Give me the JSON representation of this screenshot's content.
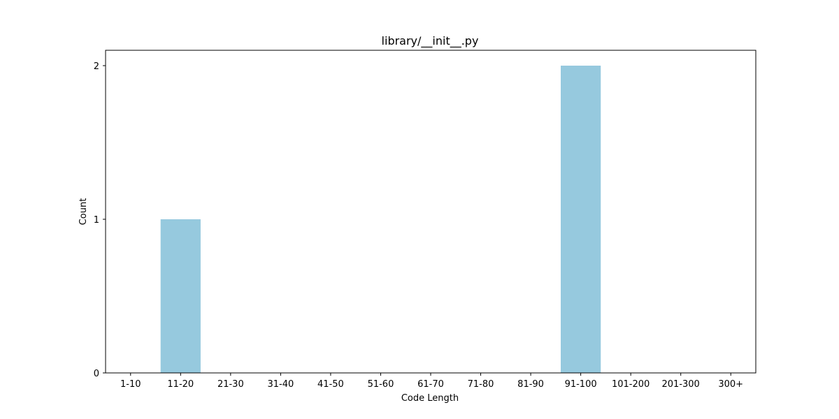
{
  "chart_data": {
    "type": "bar",
    "title": "library/__init__.py",
    "xlabel": "Code Length",
    "ylabel": "Count",
    "categories": [
      "1-10",
      "11-20",
      "21-30",
      "31-40",
      "41-50",
      "51-60",
      "61-70",
      "71-80",
      "81-90",
      "91-100",
      "101-200",
      "201-300",
      "300+"
    ],
    "values": [
      0,
      1,
      0,
      0,
      0,
      0,
      0,
      0,
      0,
      2,
      0,
      0,
      0
    ],
    "ylim": [
      0,
      2.1
    ],
    "yticks": [
      0,
      1,
      2
    ],
    "bar_color": "#96c9de",
    "grid": false,
    "legend": "none"
  }
}
